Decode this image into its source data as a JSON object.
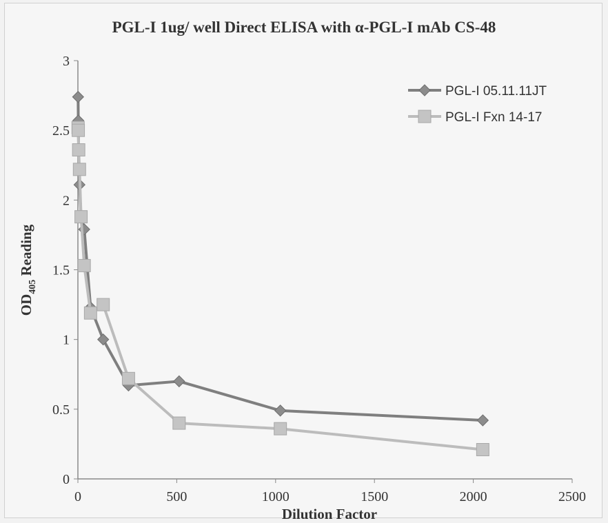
{
  "chart_data": {
    "type": "line",
    "title": "PGL-I 1ug/ well Direct ELISA with α-PGL-I mAb CS-48",
    "xlabel": "Dilution Factor",
    "ylabel": {
      "main": "OD",
      "sub": "405",
      "suffix": " Reading"
    },
    "xlim": [
      0,
      2500
    ],
    "ylim": [
      0,
      3
    ],
    "xticks": [
      0,
      500,
      1000,
      1500,
      2000,
      2500
    ],
    "yticks": [
      0,
      0.5,
      1,
      1.5,
      2,
      2.5,
      3
    ],
    "grid": false,
    "legend_position": "top-right",
    "series": [
      {
        "name": "PGL-I 05.11.11JT",
        "color": "#7f7f7f",
        "marker": "diamond",
        "x": [
          1,
          2,
          4,
          8,
          16,
          32,
          64,
          128,
          256,
          512,
          1024,
          2048
        ],
        "y": [
          2.74,
          2.57,
          2.35,
          2.11,
          1.88,
          1.79,
          1.23,
          1.0,
          0.67,
          0.7,
          0.49,
          0.42
        ]
      },
      {
        "name": "PGL-I Fxn 14-17",
        "color": "#bcbcbc",
        "marker": "square",
        "x": [
          1,
          2,
          4,
          8,
          16,
          32,
          64,
          128,
          256,
          512,
          1024,
          2048
        ],
        "y": [
          2.52,
          2.5,
          2.36,
          2.22,
          1.88,
          1.53,
          1.19,
          1.25,
          0.72,
          0.4,
          0.36,
          0.21
        ]
      }
    ]
  }
}
